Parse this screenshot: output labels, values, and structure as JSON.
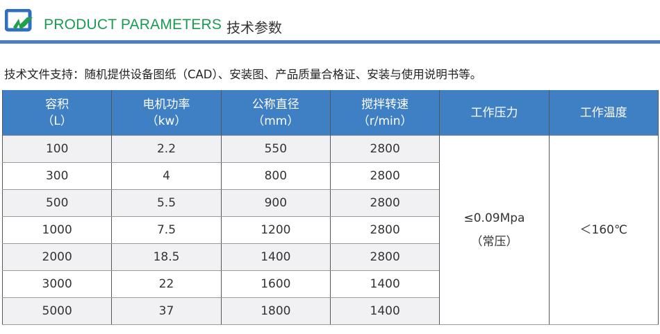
{
  "header": {
    "title_en": "PRODUCT PARAMETERS",
    "title_cn": "技术参数",
    "logo_icon": "zw-logo-icon",
    "accent": "#1a9a50",
    "bar_color": "#4a7fc6"
  },
  "intro": "技术文件支持：随机提供设备图纸（CAD）、安装图、产品质量合格证、安装与使用说明书等。",
  "table": {
    "header_color": "#3f7fc3",
    "columns": [
      {
        "name": "容积",
        "unit": "（L）"
      },
      {
        "name": "电机功率",
        "unit": "（kw）"
      },
      {
        "name": "公称直径",
        "unit": "（mm）"
      },
      {
        "name": "搅拌转速",
        "unit": "（r/min）"
      },
      {
        "name": "工作压力",
        "unit": ""
      },
      {
        "name": "工作温度",
        "unit": ""
      }
    ],
    "rows": [
      [
        "100",
        "2.2",
        "550",
        "2800"
      ],
      [
        "300",
        "4",
        "800",
        "2800"
      ],
      [
        "500",
        "5.5",
        "900",
        "2800"
      ],
      [
        "1000",
        "7.5",
        "1200",
        "2800"
      ],
      [
        "2000",
        "18.5",
        "1400",
        "2800"
      ],
      [
        "3000",
        "22",
        "1600",
        "1400"
      ],
      [
        "5000",
        "37",
        "1800",
        "1400"
      ]
    ],
    "pressure": "≤0.09Mpa",
    "pressure_note": "（常压）",
    "temperature": "＜160℃"
  }
}
